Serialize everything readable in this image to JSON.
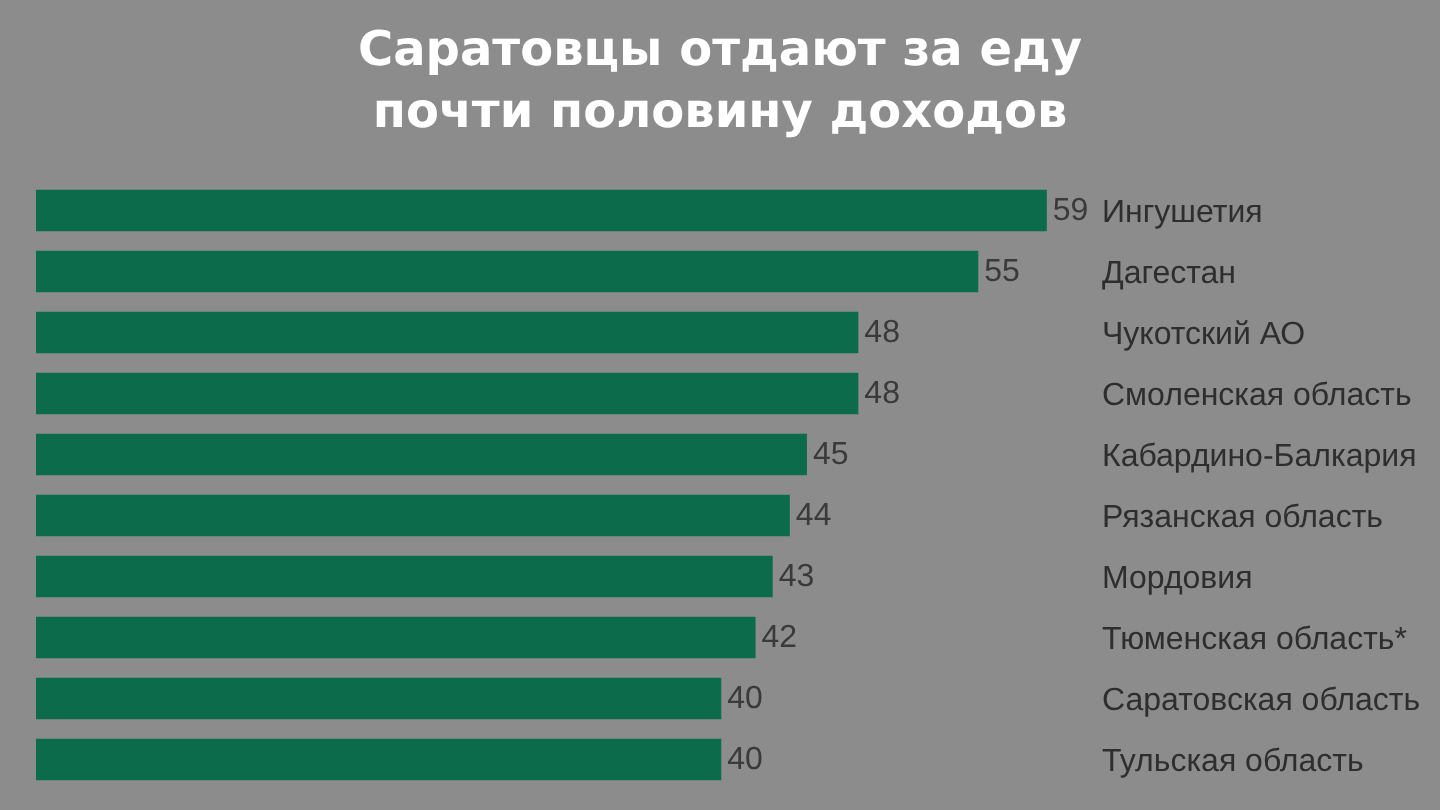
{
  "chart_data": {
    "type": "bar",
    "orientation": "horizontal",
    "title": "Саратовцы отдают за еду почти половину доходов",
    "categories": [
      "Ингушетия",
      "Дагестан",
      "Чукотский АО",
      "Смоленская область",
      "Кабардино-Балкария",
      "Рязанская область",
      "Мордовия",
      "Тюменская область*",
      "Саратовская область",
      "Тульская область"
    ],
    "values": [
      59,
      55,
      48,
      48,
      45,
      44,
      43,
      42,
      40,
      40
    ],
    "color": "#0b6b4b",
    "data_labels": true,
    "grid": false,
    "legend": false
  }
}
